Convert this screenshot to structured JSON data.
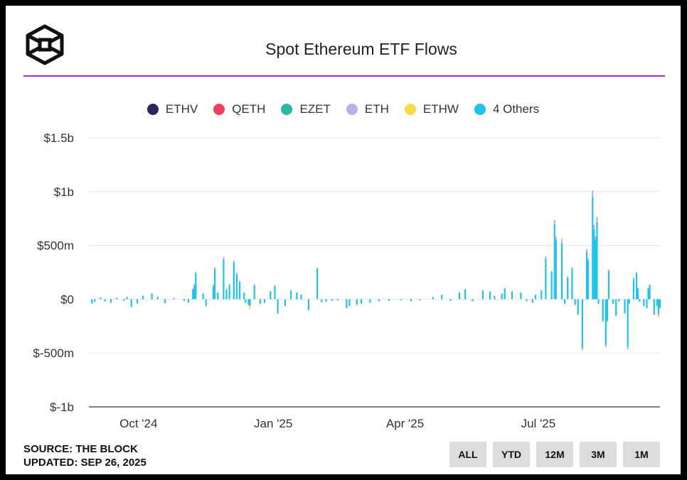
{
  "header": {
    "title": "Spot Ethereum ETF Flows"
  },
  "logo_icon": "cube-logo-icon",
  "legend": [
    {
      "label": "ETHV",
      "color": "#2a2560"
    },
    {
      "label": "QETH",
      "color": "#ef4063"
    },
    {
      "label": "EZET",
      "color": "#2bb9a6"
    },
    {
      "label": "ETH",
      "color": "#b7b2df"
    },
    {
      "label": "ETHW",
      "color": "#f6da4b"
    },
    {
      "label": "4 Others",
      "color": "#1fc3ea"
    }
  ],
  "footer": {
    "source": "SOURCE: THE BLOCK",
    "updated": "UPDATED: SEP 26, 2025"
  },
  "range_buttons": [
    "ALL",
    "YTD",
    "12M",
    "3M",
    "1M"
  ],
  "chart_data": {
    "type": "bar",
    "stacked": true,
    "title": "Spot Ethereum ETF Flows",
    "xlabel": "",
    "ylabel": "",
    "ylim": [
      -1000000000,
      1500000000
    ],
    "yticks": [
      -1000000000,
      -500000000,
      0,
      500000000,
      1000000000,
      1500000000
    ],
    "ytick_labels": [
      "$-1b",
      "$-500m",
      "$0",
      "$500m",
      "$1b",
      "$1.5b"
    ],
    "xlim": [
      "2024-09-01",
      "2025-09-26"
    ],
    "xticks": [
      "2024-10-01",
      "2025-01-01",
      "2025-04-01",
      "2025-07-01"
    ],
    "xtick_labels": [
      "Oct '24",
      "Jan '25",
      "Apr '25",
      "Jul '25"
    ],
    "grid": true,
    "legend_position": "top",
    "series_names": [
      "4 Others",
      "ETH",
      "ETHW"
    ],
    "x": [
      "2024-09-03",
      "2024-09-05",
      "2024-09-09",
      "2024-09-12",
      "2024-09-16",
      "2024-09-20",
      "2024-09-25",
      "2024-09-27",
      "2024-09-30",
      "2024-10-04",
      "2024-10-08",
      "2024-10-14",
      "2024-10-18",
      "2024-10-23",
      "2024-10-29",
      "2024-11-05",
      "2024-11-08",
      "2024-11-11",
      "2024-11-12",
      "2024-11-13",
      "2024-11-18",
      "2024-11-20",
      "2024-11-25",
      "2024-11-26",
      "2024-11-28",
      "2024-12-02",
      "2024-12-04",
      "2024-12-06",
      "2024-12-09",
      "2024-12-11",
      "2024-12-13",
      "2024-12-16",
      "2024-12-17",
      "2024-12-19",
      "2024-12-20",
      "2024-12-23",
      "2024-12-27",
      "2024-12-30",
      "2025-01-03",
      "2025-01-06",
      "2025-01-08",
      "2025-01-13",
      "2025-01-17",
      "2025-01-21",
      "2025-01-24",
      "2025-01-29",
      "2025-02-04",
      "2025-02-07",
      "2025-02-10",
      "2025-02-14",
      "2025-02-18",
      "2025-02-24",
      "2025-02-26",
      "2025-03-03",
      "2025-03-06",
      "2025-03-12",
      "2025-03-18",
      "2025-03-25",
      "2025-04-02",
      "2025-04-09",
      "2025-04-15",
      "2025-04-24",
      "2025-04-30",
      "2025-05-06",
      "2025-05-12",
      "2025-05-16",
      "2025-05-21",
      "2025-05-28",
      "2025-06-02",
      "2025-06-05",
      "2025-06-10",
      "2025-06-12",
      "2025-06-17",
      "2025-06-23",
      "2025-06-27",
      "2025-07-01",
      "2025-07-03",
      "2025-07-07",
      "2025-07-10",
      "2025-07-14",
      "2025-07-16",
      "2025-07-17",
      "2025-07-21",
      "2025-07-23",
      "2025-07-25",
      "2025-07-28",
      "2025-07-30",
      "2025-08-01",
      "2025-08-04",
      "2025-08-07",
      "2025-08-08",
      "2025-08-11",
      "2025-08-12",
      "2025-08-13",
      "2025-08-14",
      "2025-08-15",
      "2025-08-18",
      "2025-08-20",
      "2025-08-21",
      "2025-08-22",
      "2025-08-25",
      "2025-08-27",
      "2025-08-29",
      "2025-09-02",
      "2025-09-04",
      "2025-09-05",
      "2025-09-08",
      "2025-09-10",
      "2025-09-11",
      "2025-09-12",
      "2025-09-15",
      "2025-09-17",
      "2025-09-18",
      "2025-09-19",
      "2025-09-22",
      "2025-09-24",
      "2025-09-25",
      "2025-09-26"
    ],
    "series": [
      {
        "name": "4 Others",
        "values": [
          -40000000,
          -25000000,
          15000000,
          -20000000,
          -30000000,
          10000000,
          -15000000,
          20000000,
          -70000000,
          -40000000,
          30000000,
          50000000,
          20000000,
          -35000000,
          10000000,
          -15000000,
          -30000000,
          90000000,
          130000000,
          240000000,
          50000000,
          -60000000,
          120000000,
          280000000,
          60000000,
          370000000,
          90000000,
          130000000,
          340000000,
          230000000,
          160000000,
          60000000,
          -30000000,
          -50000000,
          -60000000,
          130000000,
          -40000000,
          -30000000,
          70000000,
          120000000,
          -130000000,
          -60000000,
          80000000,
          60000000,
          40000000,
          -100000000,
          280000000,
          -25000000,
          -20000000,
          -15000000,
          -10000000,
          -80000000,
          -60000000,
          -50000000,
          -40000000,
          -30000000,
          -20000000,
          -15000000,
          -10000000,
          -20000000,
          -10000000,
          20000000,
          40000000,
          -15000000,
          60000000,
          90000000,
          -20000000,
          80000000,
          70000000,
          30000000,
          50000000,
          100000000,
          70000000,
          60000000,
          -20000000,
          -30000000,
          40000000,
          80000000,
          380000000,
          250000000,
          700000000,
          550000000,
          520000000,
          -40000000,
          200000000,
          280000000,
          -50000000,
          -140000000,
          -450000000,
          440000000,
          360000000,
          950000000,
          650000000,
          550000000,
          720000000,
          -40000000,
          -200000000,
          -420000000,
          -200000000,
          260000000,
          -40000000,
          -150000000,
          -20000000,
          -130000000,
          -440000000,
          -40000000,
          190000000,
          240000000,
          100000000,
          -20000000,
          -60000000,
          -80000000,
          100000000,
          130000000,
          -140000000,
          -60000000,
          -140000000,
          -80000000
        ]
      },
      {
        "name": "ETH",
        "values": [
          2000000,
          0,
          3000000,
          0,
          -2000000,
          4000000,
          0,
          5000000,
          -5000000,
          0,
          4000000,
          6000000,
          3000000,
          -2000000,
          2000000,
          0,
          -3000000,
          10000000,
          12000000,
          15000000,
          8000000,
          -6000000,
          14000000,
          18000000,
          6000000,
          22000000,
          10000000,
          12000000,
          20000000,
          16000000,
          12000000,
          6000000,
          -3000000,
          -5000000,
          -6000000,
          10000000,
          -4000000,
          -3000000,
          6000000,
          10000000,
          -8000000,
          -5000000,
          6000000,
          5000000,
          4000000,
          -6000000,
          15000000,
          -2000000,
          -2000000,
          0,
          0,
          -5000000,
          -4000000,
          -3000000,
          -2000000,
          -2000000,
          0,
          0,
          0,
          0,
          0,
          2000000,
          3000000,
          0,
          4000000,
          6000000,
          0,
          5000000,
          5000000,
          2000000,
          4000000,
          6000000,
          5000000,
          4000000,
          0,
          -2000000,
          3000000,
          6000000,
          20000000,
          15000000,
          35000000,
          30000000,
          28000000,
          -4000000,
          12000000,
          18000000,
          -4000000,
          -10000000,
          -25000000,
          25000000,
          20000000,
          60000000,
          40000000,
          35000000,
          45000000,
          -4000000,
          -12000000,
          -25000000,
          -12000000,
          15000000,
          -4000000,
          -10000000,
          -2000000,
          -8000000,
          -25000000,
          -4000000,
          12000000,
          14000000,
          6000000,
          -2000000,
          -4000000,
          -5000000,
          6000000,
          8000000,
          -8000000,
          -4000000,
          -8000000,
          -5000000
        ]
      },
      {
        "name": "ETHW",
        "values": [
          0,
          0,
          0,
          0,
          0,
          0,
          0,
          0,
          0,
          0,
          0,
          0,
          0,
          0,
          0,
          0,
          0,
          0,
          0,
          0,
          0,
          0,
          0,
          0,
          0,
          0,
          0,
          0,
          0,
          0,
          0,
          0,
          0,
          0,
          -25000000,
          0,
          0,
          0,
          0,
          0,
          0,
          0,
          0,
          0,
          0,
          0,
          0,
          0,
          0,
          0,
          0,
          0,
          0,
          0,
          0,
          0,
          0,
          0,
          0,
          0,
          0,
          0,
          0,
          0,
          0,
          0,
          0,
          0,
          0,
          0,
          0,
          0,
          0,
          0,
          0,
          0,
          0,
          0,
          0,
          0,
          0,
          0,
          20000000,
          0,
          0,
          0,
          0,
          0,
          0,
          0,
          0,
          0,
          0,
          0,
          0,
          0,
          0,
          0,
          0,
          0,
          0,
          0,
          0,
          0,
          0,
          0,
          0,
          0,
          0,
          0,
          0,
          0,
          0,
          0,
          0,
          0,
          -20000000,
          0
        ]
      }
    ]
  }
}
